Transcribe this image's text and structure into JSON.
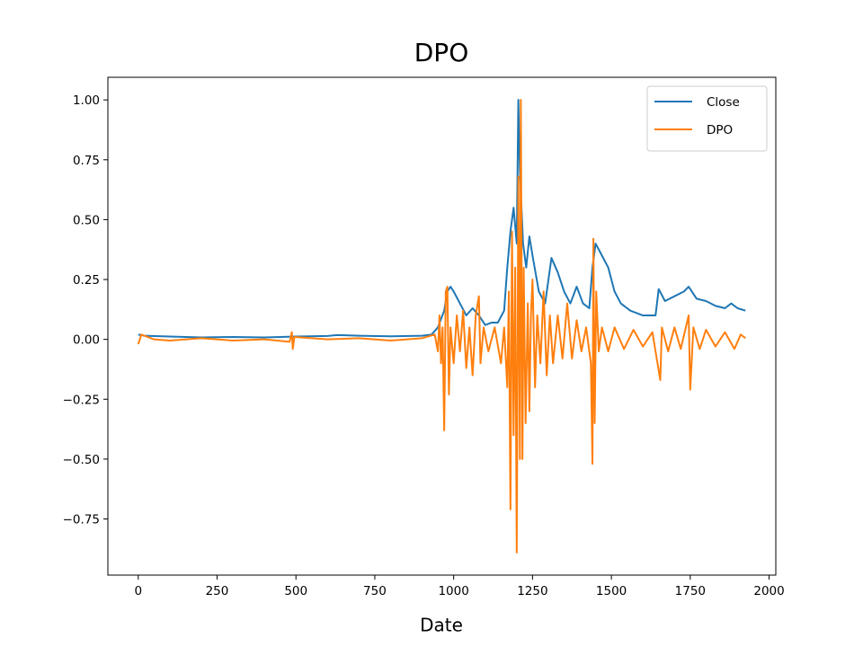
{
  "chart_data": {
    "type": "line",
    "title": "DPO",
    "x_label": "Date",
    "xlim": [
      -96.25,
      2021.25
    ],
    "xticks": [
      0,
      250,
      500,
      750,
      1000,
      1250,
      1500,
      1750,
      2000
    ],
    "ylim": [
      -0.9845,
      1.0945
    ],
    "yticks": [
      {
        "value": -0.75,
        "label": "−0.75"
      },
      {
        "value": -0.5,
        "label": "−0.50"
      },
      {
        "value": -0.25,
        "label": "−0.25"
      },
      {
        "value": 0,
        "label": "0.00"
      },
      {
        "value": 0.25,
        "label": "0.25"
      },
      {
        "value": 0.5,
        "label": "0.50"
      },
      {
        "value": 0.75,
        "label": "0.75"
      },
      {
        "value": 1,
        "label": "1.00"
      }
    ],
    "legend": "upper right",
    "series": [
      {
        "name": "Close",
        "color": "#1f77b4",
        "x": [
          0,
          20,
          100,
          200,
          300,
          400,
          500,
          600,
          630,
          700,
          800,
          900,
          930,
          950,
          970,
          980,
          990,
          1000,
          1020,
          1040,
          1060,
          1080,
          1100,
          1120,
          1140,
          1160,
          1170,
          1180,
          1190,
          1200,
          1205,
          1210,
          1220,
          1230,
          1240,
          1250,
          1270,
          1290,
          1310,
          1330,
          1350,
          1370,
          1390,
          1410,
          1430,
          1440,
          1450,
          1470,
          1490,
          1510,
          1530,
          1560,
          1600,
          1640,
          1650,
          1670,
          1700,
          1730,
          1745,
          1770,
          1800,
          1830,
          1860,
          1880,
          1900,
          1925
        ],
        "values": [
          0.02,
          0.015,
          0.012,
          0.008,
          0.01,
          0.008,
          0.012,
          0.014,
          0.018,
          0.015,
          0.013,
          0.015,
          0.02,
          0.05,
          0.12,
          0.2,
          0.22,
          0.2,
          0.15,
          0.1,
          0.13,
          0.1,
          0.06,
          0.07,
          0.07,
          0.12,
          0.3,
          0.45,
          0.55,
          0.4,
          1.0,
          0.7,
          0.4,
          0.3,
          0.43,
          0.35,
          0.2,
          0.15,
          0.34,
          0.28,
          0.2,
          0.15,
          0.22,
          0.15,
          0.13,
          0.3,
          0.4,
          0.35,
          0.3,
          0.2,
          0.15,
          0.12,
          0.1,
          0.1,
          0.21,
          0.16,
          0.18,
          0.2,
          0.22,
          0.17,
          0.16,
          0.14,
          0.13,
          0.15,
          0.13,
          0.12
        ]
      },
      {
        "name": "DPO",
        "color": "#ff7f0e",
        "x": [
          0,
          10,
          50,
          100,
          200,
          300,
          400,
          480,
          487,
          490,
          495,
          600,
          700,
          800,
          900,
          940,
          950,
          955,
          960,
          965,
          970,
          975,
          980,
          985,
          990,
          1000,
          1010,
          1020,
          1030,
          1040,
          1050,
          1060,
          1070,
          1080,
          1085,
          1095,
          1110,
          1130,
          1150,
          1160,
          1170,
          1175,
          1180,
          1185,
          1190,
          1195,
          1200,
          1205,
          1210,
          1213,
          1218,
          1222,
          1228,
          1235,
          1240,
          1245,
          1250,
          1258,
          1265,
          1275,
          1285,
          1295,
          1305,
          1315,
          1330,
          1345,
          1360,
          1375,
          1390,
          1405,
          1420,
          1435,
          1440,
          1443,
          1447,
          1452,
          1460,
          1470,
          1490,
          1510,
          1540,
          1570,
          1600,
          1630,
          1655,
          1660,
          1680,
          1700,
          1720,
          1745,
          1750,
          1760,
          1780,
          1800,
          1830,
          1860,
          1890,
          1910,
          1925
        ],
        "values": [
          -0.02,
          0.02,
          0,
          -0.005,
          0.005,
          -0.005,
          0,
          -0.01,
          0.03,
          -0.04,
          0.01,
          0,
          0.005,
          -0.005,
          0.005,
          0.02,
          -0.05,
          0.1,
          -0.1,
          0.05,
          -0.38,
          0.2,
          0.22,
          -0.23,
          0.05,
          -0.1,
          0.1,
          -0.05,
          0.12,
          -0.12,
          0.05,
          -0.15,
          0.1,
          0.18,
          -0.1,
          0.05,
          -0.05,
          0.05,
          -0.1,
          0.05,
          -0.2,
          0.2,
          -0.71,
          0.45,
          -0.4,
          0.3,
          -0.89,
          0.68,
          -0.5,
          1.0,
          -0.5,
          0.3,
          -0.35,
          0.15,
          -0.3,
          0.1,
          0.25,
          -0.2,
          0.1,
          -0.1,
          0.2,
          -0.15,
          0.1,
          -0.1,
          0.1,
          -0.08,
          0.15,
          -0.08,
          0.08,
          -0.05,
          0.05,
          -0.1,
          -0.52,
          0.42,
          -0.35,
          0.2,
          -0.05,
          0.05,
          -0.05,
          0.05,
          -0.04,
          0.04,
          -0.03,
          0.03,
          -0.17,
          0.05,
          -0.05,
          0.05,
          -0.04,
          0.1,
          -0.21,
          0.05,
          -0.04,
          0.04,
          -0.03,
          0.03,
          -0.04,
          0.02,
          0.005
        ]
      }
    ]
  }
}
